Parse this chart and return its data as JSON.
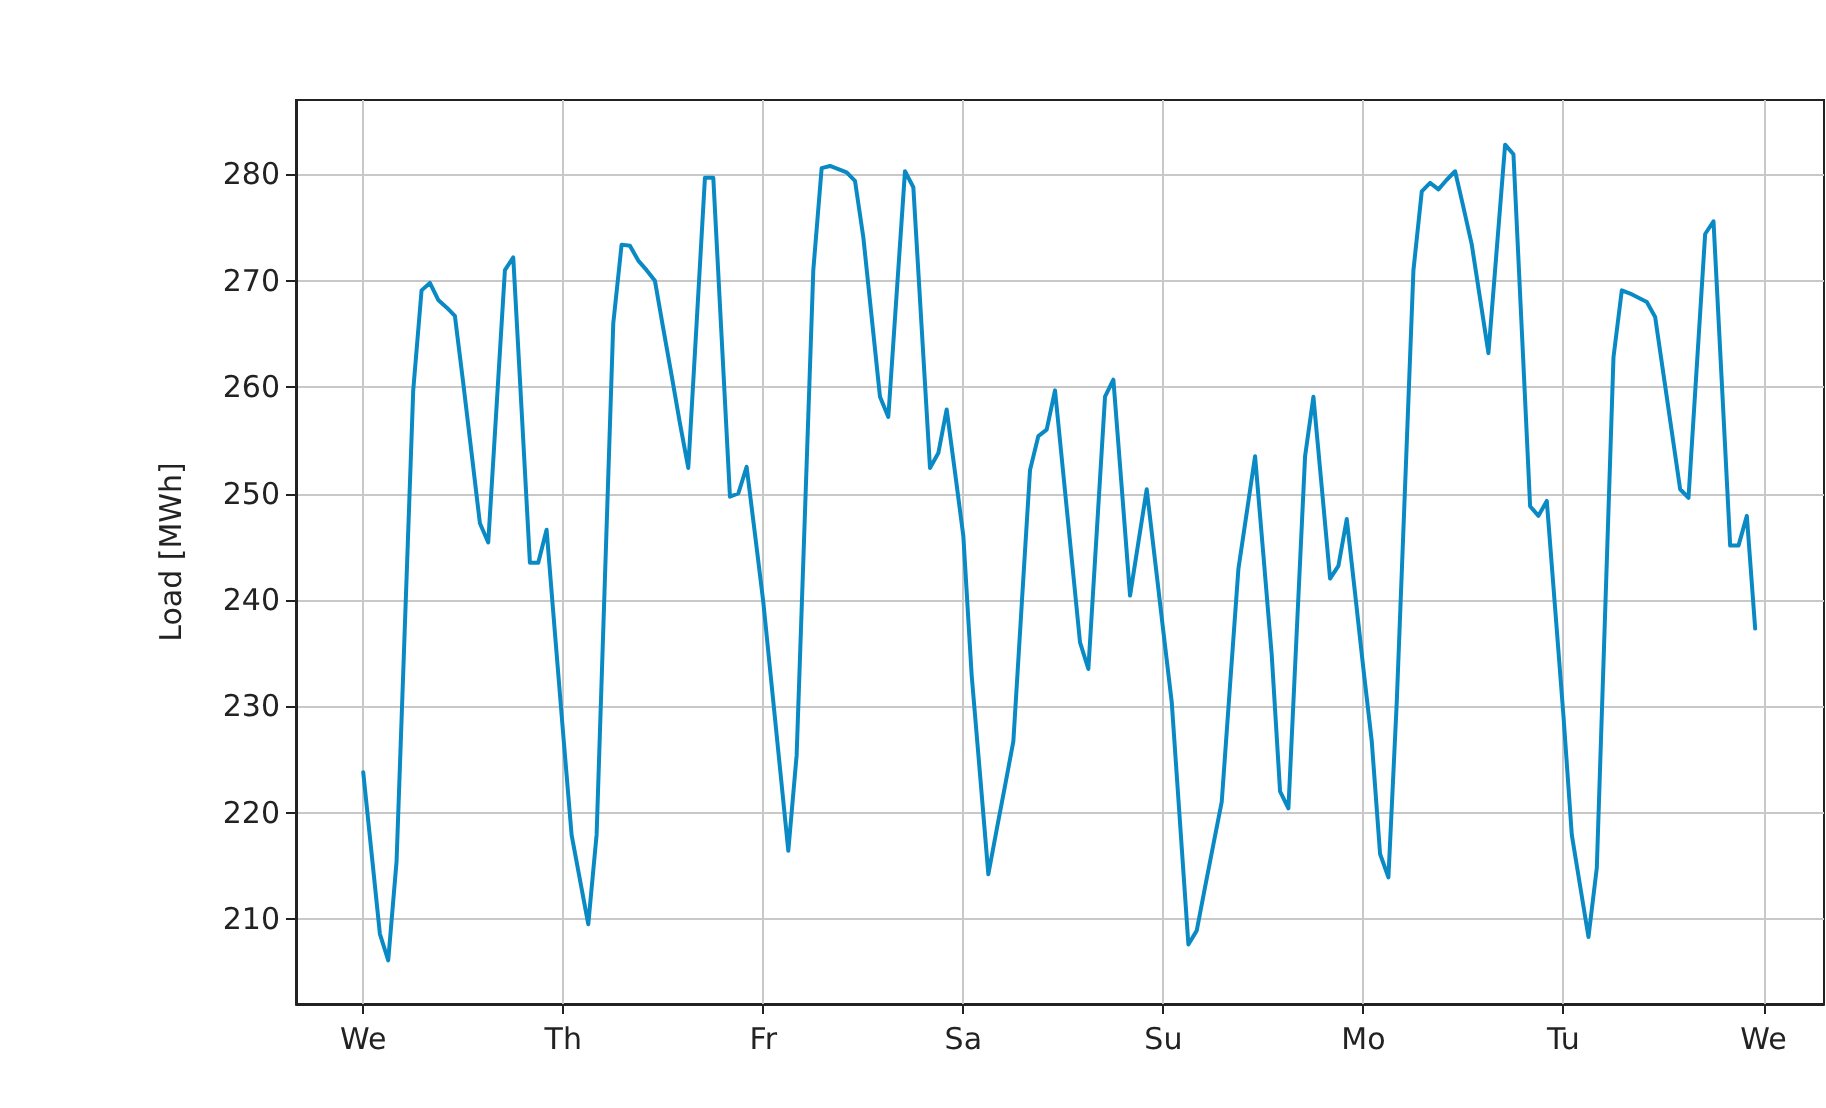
{
  "chart_data": {
    "type": "line",
    "ylabel": "Load [MWh]",
    "ylim": [
      202,
      287
    ],
    "categories": [
      "We",
      null,
      null,
      null,
      null,
      null,
      null,
      null,
      null,
      null,
      null,
      null,
      null,
      null,
      null,
      null,
      null,
      null,
      null,
      null,
      null,
      null,
      null,
      null,
      "Th",
      null,
      null,
      null,
      null,
      null,
      null,
      null,
      null,
      null,
      null,
      null,
      null,
      null,
      null,
      null,
      null,
      null,
      null,
      null,
      null,
      null,
      null,
      null,
      "Fr",
      null,
      null,
      null,
      null,
      null,
      null,
      null,
      null,
      null,
      null,
      null,
      null,
      null,
      null,
      null,
      null,
      null,
      null,
      null,
      null,
      null,
      null,
      null,
      "Sa",
      null,
      null,
      null,
      null,
      null,
      null,
      null,
      null,
      null,
      null,
      null,
      null,
      null,
      null,
      null,
      null,
      null,
      null,
      null,
      null,
      null,
      null,
      null,
      "Su",
      null,
      null,
      null,
      null,
      null,
      null,
      null,
      null,
      null,
      null,
      null,
      null,
      null,
      null,
      null,
      null,
      null,
      null,
      null,
      null,
      null,
      null,
      null,
      "Mo",
      null,
      null,
      null,
      null,
      null,
      null,
      null,
      null,
      null,
      null,
      null,
      null,
      null,
      null,
      null,
      null,
      null,
      null,
      null,
      null,
      null,
      null,
      null,
      "Tu",
      null,
      null,
      null,
      null,
      null,
      null,
      null,
      null,
      null,
      null,
      null,
      null,
      null,
      null,
      null,
      null,
      null,
      null,
      null,
      null,
      null,
      null,
      null,
      "We"
    ],
    "yticks": [
      210,
      220,
      230,
      240,
      250,
      260,
      270,
      280
    ],
    "grid": true,
    "marker": "none",
    "line_style": "solid",
    "series": [
      {
        "color": "#0a8ac4",
        "values": [
          223.8,
          216.2,
          208.6,
          206.1,
          215.4,
          237.6,
          259.7,
          269.1,
          269.8,
          268.2,
          267.5,
          266.7,
          260.4,
          253.8,
          247.2,
          245.4,
          258.2,
          271,
          272.2,
          257.9,
          243.5,
          243.5,
          246.6,
          236.9,
          227.3,
          217.9,
          213.7,
          209.5,
          217.9,
          242,
          266,
          273.4,
          273.3,
          271.9,
          271,
          270,
          265.5,
          261.1,
          256.6,
          252.4,
          266,
          279.7,
          279.7,
          264.7,
          249.7,
          250,
          252.5,
          246.2,
          239.8,
          232,
          224.2,
          216.4,
          225.4,
          248.2,
          271,
          280.6,
          280.8,
          280.5,
          280.2,
          279.4,
          274.1,
          266.6,
          259.1,
          257.2,
          268.8,
          280.3,
          278.8,
          265.6,
          252.4,
          253.8,
          257.9,
          252,
          246,
          232.9,
          223.6,
          214.2,
          218.4,
          222.5,
          226.7,
          239.5,
          252.2,
          255.4,
          256,
          259.7,
          251.8,
          243.9,
          236,
          233.5,
          246.3,
          259.1,
          260.7,
          250.6,
          240.4,
          245.4,
          250.4,
          243.7,
          237,
          230.4,
          219,
          207.6,
          208.9,
          213,
          217,
          221,
          232,
          242.9,
          248.2,
          253.5,
          244.2,
          234.8,
          222,
          220.4,
          237,
          253.5,
          259.1,
          250.6,
          242,
          243.2,
          247.6,
          240.6,
          233.5,
          226.7,
          216.1,
          213.9,
          230.4,
          250.7,
          271,
          278.4,
          279.2,
          278.6,
          279.5,
          280.3,
          276.9,
          273.4,
          268.3,
          263.2,
          273,
          282.8,
          281.9,
          265.4,
          248.8,
          247.9,
          249.3,
          239.2,
          229.1,
          217.9,
          213.1,
          208.3,
          214.8,
          238.8,
          262.8,
          269.1,
          268.8,
          268.4,
          268,
          266.6,
          261.2,
          255.8,
          250.4,
          249.6,
          262,
          274.4,
          275.6,
          260.4,
          245.1,
          245.1,
          247.9,
          237.3,
          null
        ]
      }
    ]
  }
}
